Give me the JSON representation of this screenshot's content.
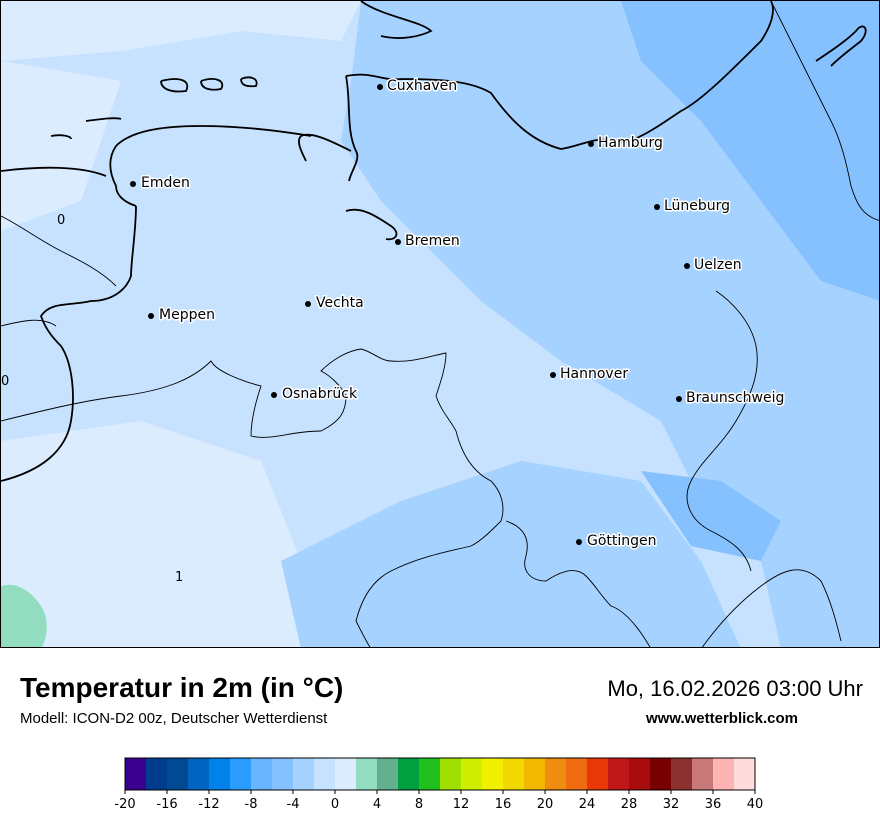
{
  "header": {
    "title": "Temperatur in 2m (in °C)",
    "model": "Modell: ICON-D2 00z, Deutscher Wetterdienst",
    "datetime": "Mo, 16.02.2026 03:00 Uhr",
    "website": "www.wetterblick.com"
  },
  "map": {
    "cities": [
      {
        "name": "Cuxhaven"
      },
      {
        "name": "Hamburg"
      },
      {
        "name": "Emden"
      },
      {
        "name": "Lüneburg"
      },
      {
        "name": "Bremen"
      },
      {
        "name": "Uelzen"
      },
      {
        "name": "Vechta"
      },
      {
        "name": "Meppen"
      },
      {
        "name": "Hannover"
      },
      {
        "name": "Osnabrück"
      },
      {
        "name": "Braunschweig"
      },
      {
        "name": "Göttingen"
      }
    ],
    "isotherm_labels": [
      "0",
      "0",
      "1"
    ],
    "colors": {
      "cold_1": "#86c1ff",
      "cold_2": "#a6d2ff",
      "cold_3": "#c6e2ff",
      "cold_4": "#dcecff",
      "warm_1": "#92dcc0"
    }
  },
  "legend": {
    "unit": "°C",
    "min": -20,
    "max": 40,
    "step": 2,
    "colors": [
      "#3a0090",
      "#003c8c",
      "#004a92",
      "#0064c0",
      "#0082e8",
      "#2a9cff",
      "#6ab5ff",
      "#86c1ff",
      "#a6d2ff",
      "#c6e2ff",
      "#dcecff",
      "#92dcc0",
      "#64b08e",
      "#00a040",
      "#20c020",
      "#a0e000",
      "#cef000",
      "#f0f000",
      "#f0d800",
      "#f0b800",
      "#f08c10",
      "#f06c10",
      "#e83808",
      "#c01818",
      "#a80c0c",
      "#780000",
      "#8c3030",
      "#c87878",
      "#ffb4b4",
      "#ffdcdc"
    ],
    "tick_labels": [
      "-20",
      "-16",
      "-12",
      "-8",
      "-4",
      "0",
      "4",
      "8",
      "12",
      "16",
      "20",
      "24",
      "28",
      "32",
      "36",
      "40"
    ]
  }
}
